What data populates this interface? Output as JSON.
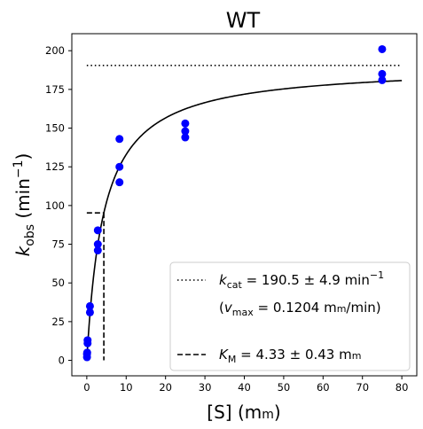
{
  "chart_data": {
    "type": "scatter",
    "title": "WT",
    "xlabel": {
      "main": "[S] (m",
      "unit_sc": "m",
      "close": ")"
    },
    "ylabel": {
      "k": "k",
      "sub": "obs",
      "mid": " (min",
      "sup": "−1",
      "close": ")"
    },
    "xlim": [
      -3.8,
      83.8
    ],
    "ylim": [
      -10.0,
      211.0
    ],
    "xticks": [
      0,
      10,
      20,
      30,
      40,
      50,
      60,
      70,
      80
    ],
    "yticks": [
      0,
      25,
      50,
      75,
      100,
      125,
      150,
      175,
      200
    ],
    "grid": false,
    "legend_position": "lower-right",
    "colors": {
      "points": "#0000ff",
      "lines": "#000000"
    },
    "points": {
      "x": [
        0.05,
        0.05,
        0.1,
        0.2,
        0.2,
        0.8,
        0.8,
        2.8,
        2.8,
        2.8,
        8.3,
        8.3,
        8.3,
        25,
        25,
        25,
        75,
        75,
        75
      ],
      "y": [
        2,
        4,
        5,
        11,
        13,
        31,
        35,
        71,
        75,
        84,
        115,
        125,
        143,
        144,
        148,
        153,
        181,
        185,
        201
      ]
    },
    "fit": {
      "kcat": 190.5,
      "KM": 4.33,
      "x_max": 80
    },
    "kcat_line": {
      "y": 190.5,
      "x": [
        0,
        80
      ]
    },
    "km_line": {
      "x": 4.33,
      "y": 95.25
    },
    "legend": {
      "kcat": {
        "k": "k",
        "sub": "cat",
        "text": " = 190.5 ± 4.9 min",
        "sup": "−1"
      },
      "vmax": {
        "open": "(",
        "v": "v",
        "sub": "max",
        "text": " = 0.1204 m",
        "unit_sc": "m",
        "tail": "/min)"
      },
      "km": {
        "k": "K",
        "sub": "M",
        "text": " = 4.33 ± 0.43 m",
        "unit_sc": "m"
      }
    }
  }
}
